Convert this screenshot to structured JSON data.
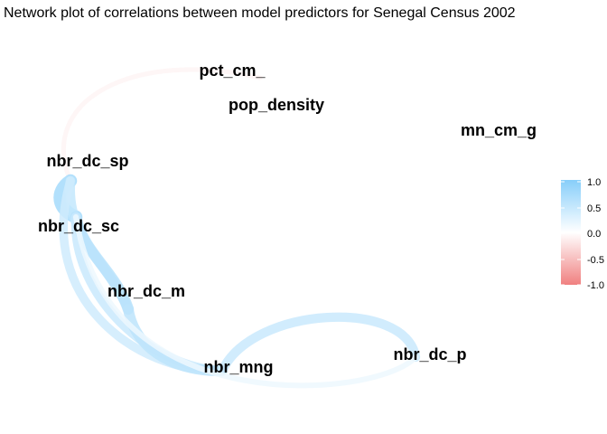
{
  "chart_data": {
    "type": "network",
    "title": "Network plot of correlations between model predictors for Senegal Census 2002",
    "nodes": [
      "pct_cm_",
      "pop_density",
      "mn_cm_g",
      "nbr_dc_sp",
      "nbr_dc_sc",
      "nbr_dc_m",
      "nbr_mng",
      "nbr_dc_p"
    ],
    "edges": [
      {
        "from": "pct_cm_",
        "to": "nbr_dc_sp",
        "r": -0.08
      },
      {
        "from": "nbr_dc_sp",
        "to": "nbr_dc_sc",
        "r": 0.75
      },
      {
        "from": "nbr_dc_sp",
        "to": "nbr_dc_m",
        "r": 0.5
      },
      {
        "from": "nbr_dc_sp",
        "to": "nbr_mng",
        "r": 0.4
      },
      {
        "from": "nbr_dc_sc",
        "to": "nbr_dc_m",
        "r": 0.6
      },
      {
        "from": "nbr_dc_sc",
        "to": "nbr_mng",
        "r": 0.45
      },
      {
        "from": "nbr_dc_m",
        "to": "nbr_mng",
        "r": 0.55
      },
      {
        "from": "nbr_mng",
        "to": "nbr_dc_p",
        "r": 0.45
      },
      {
        "from": "nbr_dc_p",
        "to": "nbr_dc_sc",
        "r": 0.15
      }
    ],
    "legend": {
      "position": "right",
      "ticks": [
        "1.0",
        "0.5",
        "0.0",
        "-0.5",
        "-1.0"
      ],
      "range": [
        -1,
        1
      ],
      "colors": {
        "negative": "#f08080",
        "zero": "#ffffff",
        "positive": "#87cefa"
      }
    }
  }
}
